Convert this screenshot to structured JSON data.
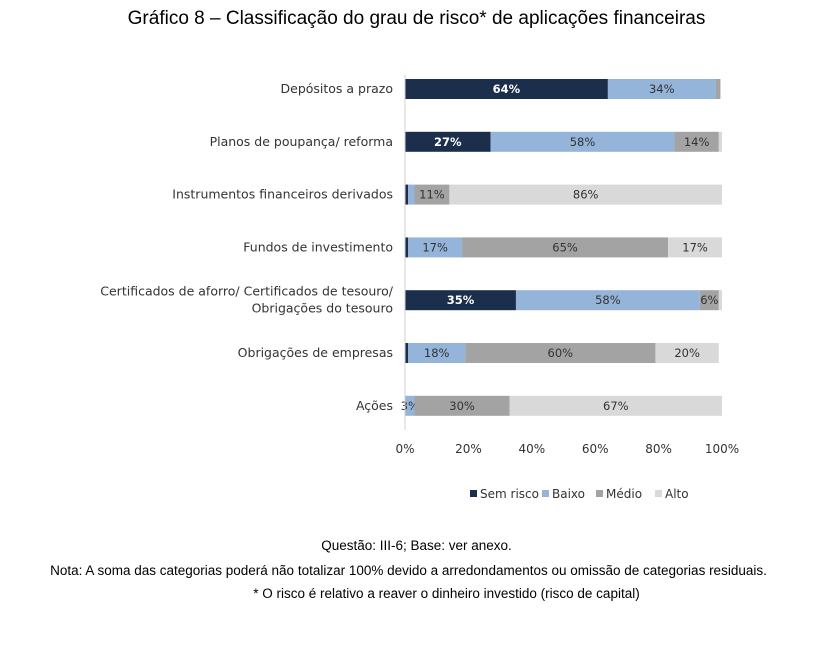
{
  "title": "Gráfico 8 – Classificação do grau de risco* de aplicações financeiras",
  "chart_data": {
    "type": "bar",
    "orientation": "horizontal",
    "stacked": true,
    "title": "Gráfico 8 – Classificação do grau de risco* de aplicações financeiras",
    "categories": [
      [
        "Depósitos a prazo"
      ],
      [
        "Planos de poupança/ reforma"
      ],
      [
        "Instrumentos financeiros derivados"
      ],
      [
        "Fundos de investimento"
      ],
      [
        "Certificados de aforro/ Certificados de tesouro/",
        "Obrigações do tesouro"
      ],
      [
        "Obrigações de empresas"
      ],
      [
        "Ações"
      ]
    ],
    "series": [
      {
        "name": "Sem risco",
        "color": "#1b2f4d",
        "label_color": "#ffffff",
        "label_bold": true,
        "values": [
          64,
          27,
          1,
          1,
          35,
          1,
          0
        ],
        "labels": [
          "64%",
          "27%",
          "",
          "",
          "35%",
          "",
          ""
        ]
      },
      {
        "name": "Baixo",
        "color": "#94b4da",
        "label_color": "#333333",
        "label_bold": false,
        "values": [
          34,
          58,
          2,
          17,
          58,
          18,
          3
        ],
        "labels": [
          "34%",
          "58%",
          "",
          "17%",
          "58%",
          "18%",
          "3%"
        ]
      },
      {
        "name": "Médio",
        "color": "#a3a3a3",
        "label_color": "#333333",
        "label_bold": false,
        "values": [
          1.5,
          14,
          11,
          65,
          6,
          60,
          30
        ],
        "labels": [
          "",
          "14%",
          "11%",
          "65%",
          "6%",
          "60%",
          "30%"
        ]
      },
      {
        "name": "Alto",
        "color": "#d9d9d9",
        "label_color": "#333333",
        "label_bold": false,
        "values": [
          0,
          1,
          86,
          17,
          1,
          20,
          67
        ],
        "labels": [
          "",
          "",
          "86%",
          "17%",
          "",
          "20%",
          "67%"
        ]
      }
    ],
    "xlim": [
      0,
      100
    ],
    "xticks": [
      "0%",
      "20%",
      "40%",
      "60%",
      "80%",
      "100%"
    ],
    "legend_position": "bottom",
    "grid": false
  },
  "notes": {
    "question": "Questão: III-6; Base: ver anexo.",
    "note": "Nota: A soma das categorias poderá não totalizar 100% devido a arredondamentos ou omissão de categorias residuais.",
    "footnote": "* O risco é relativo a reaver o dinheiro investido (risco de capital)"
  }
}
